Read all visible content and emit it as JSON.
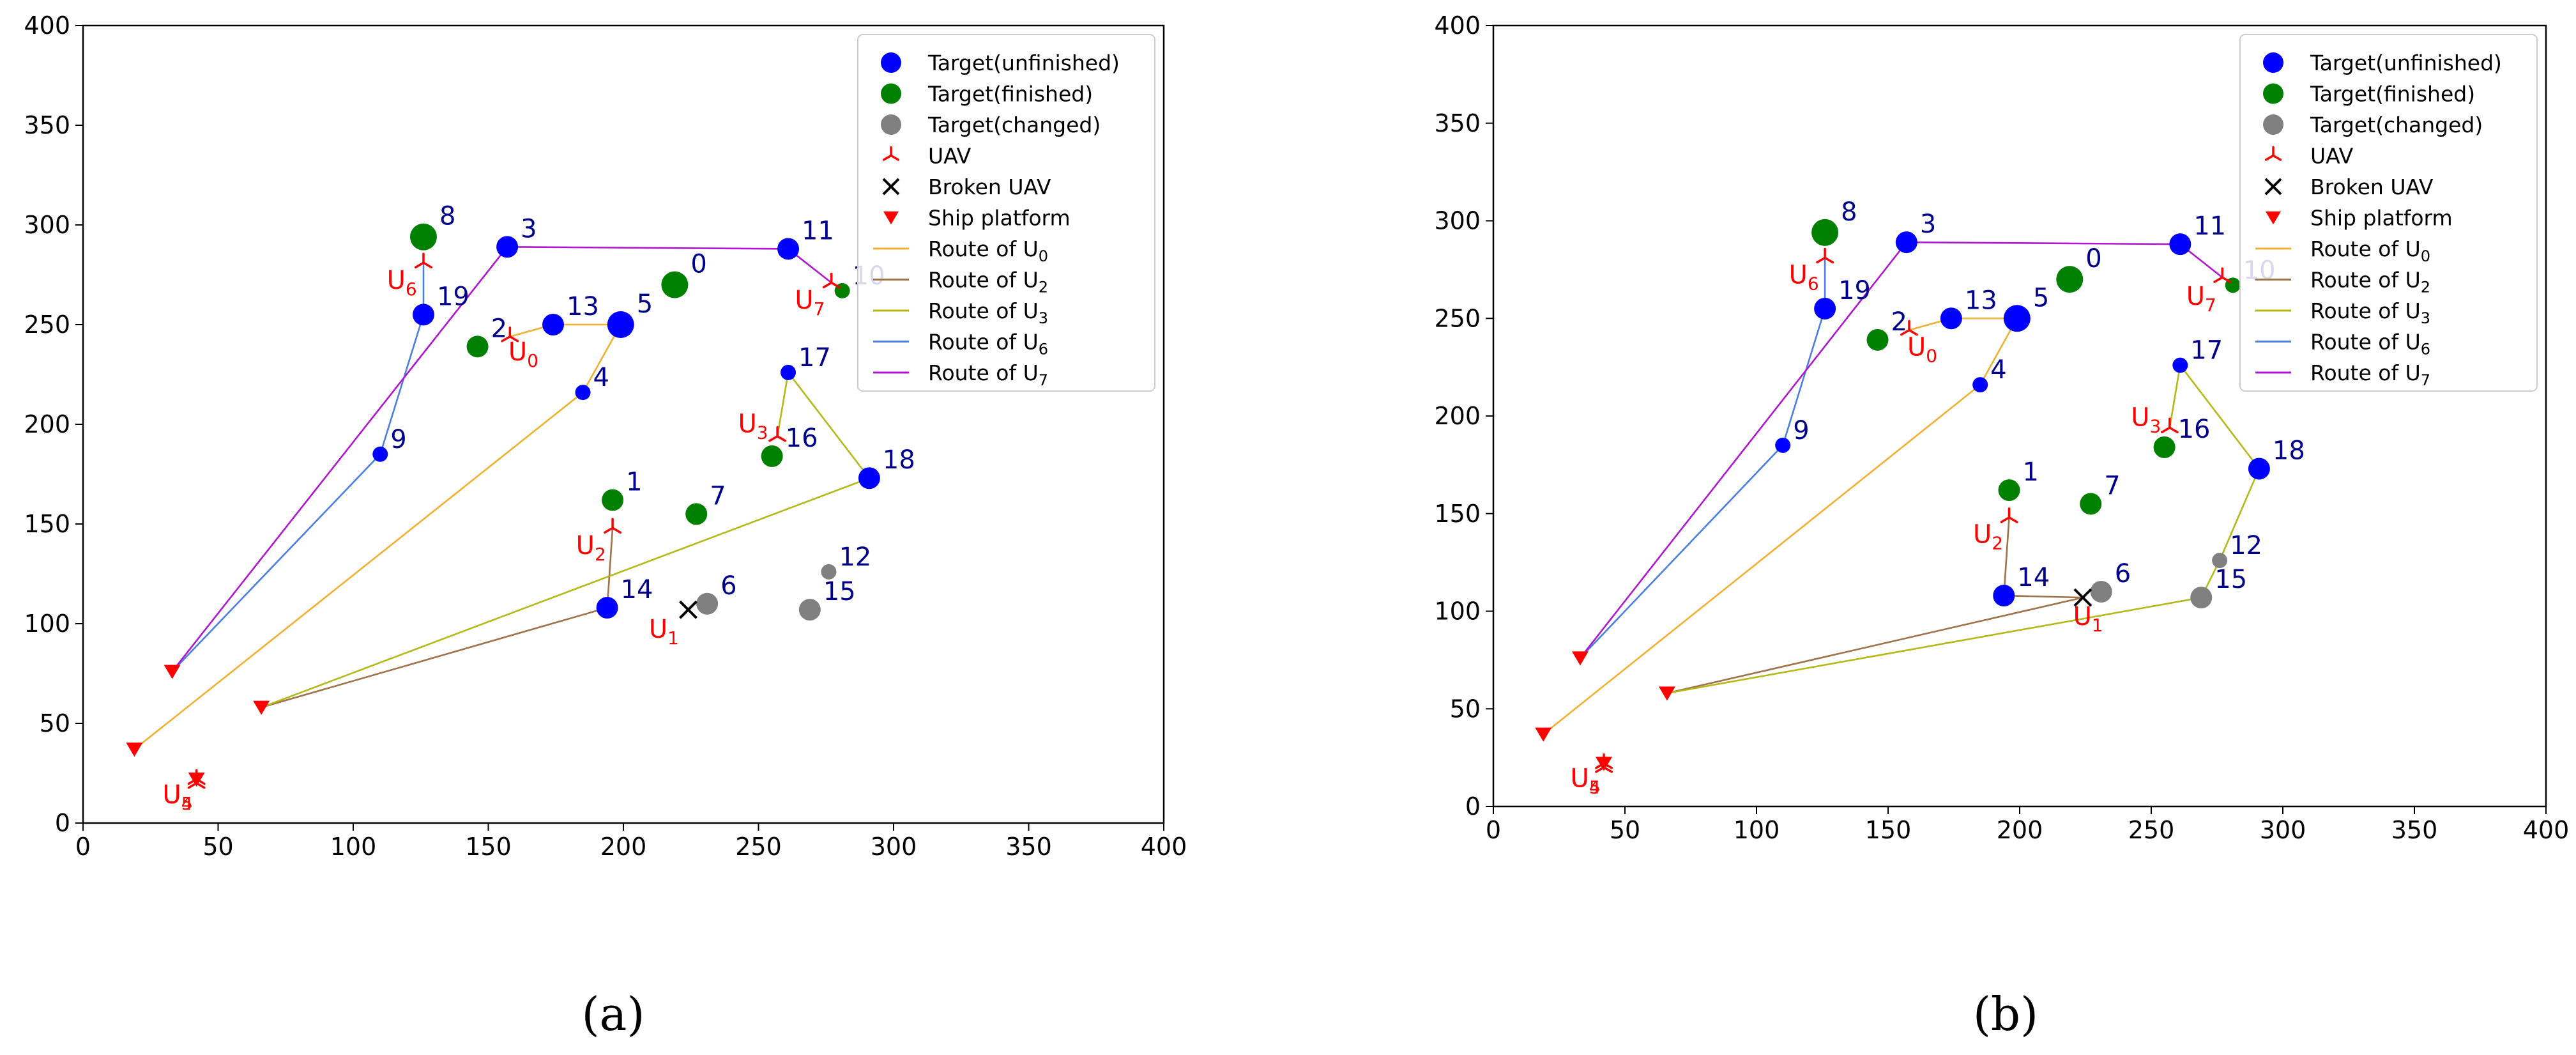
{
  "chart_data": [
    {
      "type": "scatter",
      "caption": "(a)",
      "xlim": [
        0,
        400
      ],
      "ylim": [
        0,
        400
      ],
      "xticks": [
        0,
        50,
        100,
        150,
        200,
        250,
        300,
        350,
        400
      ],
      "yticks": [
        0,
        50,
        100,
        150,
        200,
        250,
        300,
        350,
        400
      ],
      "legend_position": "top-right",
      "legend": [
        {
          "label": "Target(unfinished)",
          "marker": "circle",
          "color": "#0000ff"
        },
        {
          "label": "Target(finished)",
          "marker": "circle",
          "color": "#008000"
        },
        {
          "label": "Target(changed)",
          "marker": "circle",
          "color": "#808080"
        },
        {
          "label": "UAV",
          "marker": "tri_up",
          "color": "#ff0000"
        },
        {
          "label": "Broken UAV",
          "marker": "x",
          "color": "#000000"
        },
        {
          "label": "Ship platform",
          "marker": "triangle_down",
          "color": "#ff0000"
        },
        {
          "label": "Route of U",
          "sub": "0",
          "marker": "line",
          "color": "#f0b030"
        },
        {
          "label": "Route of U",
          "sub": "2",
          "marker": "line",
          "color": "#a0724a"
        },
        {
          "label": "Route of U",
          "sub": "3",
          "marker": "line",
          "color": "#b5b817"
        },
        {
          "label": "Route of U",
          "sub": "6",
          "marker": "line",
          "color": "#4a7ee0"
        },
        {
          "label": "Route of U",
          "sub": "7",
          "marker": "line",
          "color": "#b015d0"
        }
      ],
      "targets": [
        {
          "id": "0",
          "x": 219,
          "y": 270,
          "status": "finished",
          "size": "large"
        },
        {
          "id": "1",
          "x": 196,
          "y": 162,
          "status": "finished",
          "size": "medium"
        },
        {
          "id": "2",
          "x": 146,
          "y": 239,
          "status": "finished",
          "size": "medium"
        },
        {
          "id": "3",
          "x": 157,
          "y": 289,
          "status": "unfinished",
          "size": "medium"
        },
        {
          "id": "4",
          "x": 185,
          "y": 216,
          "status": "unfinished",
          "size": "small"
        },
        {
          "id": "5",
          "x": 199,
          "y": 250,
          "status": "unfinished",
          "size": "large"
        },
        {
          "id": "6",
          "x": 231,
          "y": 110,
          "status": "changed",
          "size": "medium"
        },
        {
          "id": "7",
          "x": 227,
          "y": 155,
          "status": "finished",
          "size": "medium"
        },
        {
          "id": "8",
          "x": 126,
          "y": 294,
          "status": "finished",
          "size": "large"
        },
        {
          "id": "9",
          "x": 110,
          "y": 185,
          "status": "unfinished",
          "size": "small"
        },
        {
          "id": "10",
          "x": 281,
          "y": 267,
          "status": "finished",
          "size": "small"
        },
        {
          "id": "11",
          "x": 261,
          "y": 288,
          "status": "unfinished",
          "size": "medium"
        },
        {
          "id": "12",
          "x": 276,
          "y": 126,
          "status": "changed",
          "size": "small"
        },
        {
          "id": "13",
          "x": 174,
          "y": 250,
          "status": "unfinished",
          "size": "medium"
        },
        {
          "id": "14",
          "x": 194,
          "y": 108,
          "status": "unfinished",
          "size": "medium"
        },
        {
          "id": "15",
          "x": 269,
          "y": 107,
          "status": "changed",
          "size": "medium"
        },
        {
          "id": "16",
          "x": 255,
          "y": 184,
          "status": "finished",
          "size": "medium"
        },
        {
          "id": "17",
          "x": 261,
          "y": 226,
          "status": "unfinished",
          "size": "small"
        },
        {
          "id": "18",
          "x": 291,
          "y": 173,
          "status": "unfinished",
          "size": "medium"
        },
        {
          "id": "19",
          "x": 126,
          "y": 255,
          "status": "unfinished",
          "size": "medium"
        }
      ],
      "ships": [
        {
          "x": 19,
          "y": 37
        },
        {
          "x": 33,
          "y": 76
        },
        {
          "x": 66,
          "y": 58
        },
        {
          "x": 42,
          "y": 22
        }
      ],
      "uavs": [
        {
          "sub": "0",
          "x": 158,
          "y": 244,
          "label_x": 163,
          "label_y": 232
        },
        {
          "sub": "2",
          "x": 196,
          "y": 148,
          "label_x": 188,
          "label_y": 135
        },
        {
          "sub": "3",
          "x": 257,
          "y": 194,
          "label_x": 248,
          "label_y": 196
        },
        {
          "sub": "6",
          "x": 126,
          "y": 281,
          "label_x": 118,
          "label_y": 268
        },
        {
          "sub": "7",
          "x": 277,
          "y": 271,
          "label_x": 269,
          "label_y": 258
        },
        {
          "sub": "5",
          "x": 42,
          "y": 22,
          "label_x": 35,
          "label_y": 10
        },
        {
          "sub": "4",
          "x": 42,
          "y": 20,
          "label_x": 35,
          "label_y": 10
        }
      ],
      "broken_uavs": [
        {
          "sub": "1",
          "x": 224,
          "y": 107,
          "label_x": 215,
          "label_y": 93
        }
      ],
      "routes": [
        {
          "uav": "0",
          "color": "#f0b030",
          "points": [
            [
              19,
              37
            ],
            [
              185,
              216
            ],
            [
              199,
              250
            ],
            [
              174,
              250
            ],
            [
              158,
              244
            ]
          ]
        },
        {
          "uav": "2",
          "color": "#a0724a",
          "points": [
            [
              66,
              58
            ],
            [
              194,
              108
            ],
            [
              196,
              148
            ]
          ]
        },
        {
          "uav": "3",
          "color": "#b5b817",
          "points": [
            [
              66,
              58
            ],
            [
              291,
              173
            ],
            [
              261,
              226
            ],
            [
              257,
              194
            ]
          ]
        },
        {
          "uav": "6",
          "color": "#4a7ee0",
          "points": [
            [
              33,
              76
            ],
            [
              110,
              185
            ],
            [
              126,
              255
            ],
            [
              126,
              281
            ]
          ]
        },
        {
          "uav": "7",
          "color": "#b015d0",
          "points": [
            [
              33,
              76
            ],
            [
              157,
              289
            ],
            [
              261,
              288
            ],
            [
              277,
              271
            ]
          ]
        }
      ]
    },
    {
      "type": "scatter",
      "caption": "(b)",
      "xlim": [
        0,
        400
      ],
      "ylim": [
        0,
        400
      ],
      "xticks": [
        0,
        50,
        100,
        150,
        200,
        250,
        300,
        350,
        400
      ],
      "yticks": [
        0,
        50,
        100,
        150,
        200,
        250,
        300,
        350,
        400
      ],
      "legend_position": "top-right",
      "legend": [
        {
          "label": "Target(unfinished)",
          "marker": "circle",
          "color": "#0000ff"
        },
        {
          "label": "Target(finished)",
          "marker": "circle",
          "color": "#008000"
        },
        {
          "label": "Target(changed)",
          "marker": "circle",
          "color": "#808080"
        },
        {
          "label": "UAV",
          "marker": "tri_up",
          "color": "#ff0000"
        },
        {
          "label": "Broken UAV",
          "marker": "x",
          "color": "#000000"
        },
        {
          "label": "Ship platform",
          "marker": "triangle_down",
          "color": "#ff0000"
        },
        {
          "label": "Route of U",
          "sub": "0",
          "marker": "line",
          "color": "#f0b030"
        },
        {
          "label": "Route of U",
          "sub": "2",
          "marker": "line",
          "color": "#a0724a"
        },
        {
          "label": "Route of U",
          "sub": "3",
          "marker": "line",
          "color": "#b5b817"
        },
        {
          "label": "Route of U",
          "sub": "6",
          "marker": "line",
          "color": "#4a7ee0"
        },
        {
          "label": "Route of U",
          "sub": "7",
          "marker": "line",
          "color": "#b015d0"
        }
      ],
      "targets": [
        {
          "id": "0",
          "x": 219,
          "y": 270,
          "status": "finished",
          "size": "large"
        },
        {
          "id": "1",
          "x": 196,
          "y": 162,
          "status": "finished",
          "size": "medium"
        },
        {
          "id": "2",
          "x": 146,
          "y": 239,
          "status": "finished",
          "size": "medium"
        },
        {
          "id": "3",
          "x": 157,
          "y": 289,
          "status": "unfinished",
          "size": "medium"
        },
        {
          "id": "4",
          "x": 185,
          "y": 216,
          "status": "unfinished",
          "size": "small"
        },
        {
          "id": "5",
          "x": 199,
          "y": 250,
          "status": "unfinished",
          "size": "large"
        },
        {
          "id": "6",
          "x": 231,
          "y": 110,
          "status": "changed",
          "size": "medium"
        },
        {
          "id": "7",
          "x": 227,
          "y": 155,
          "status": "finished",
          "size": "medium"
        },
        {
          "id": "8",
          "x": 126,
          "y": 294,
          "status": "finished",
          "size": "large"
        },
        {
          "id": "9",
          "x": 110,
          "y": 185,
          "status": "unfinished",
          "size": "small"
        },
        {
          "id": "10",
          "x": 281,
          "y": 267,
          "status": "finished",
          "size": "small"
        },
        {
          "id": "11",
          "x": 261,
          "y": 288,
          "status": "unfinished",
          "size": "medium"
        },
        {
          "id": "12",
          "x": 276,
          "y": 126,
          "status": "changed",
          "size": "small"
        },
        {
          "id": "13",
          "x": 174,
          "y": 250,
          "status": "unfinished",
          "size": "medium"
        },
        {
          "id": "14",
          "x": 194,
          "y": 108,
          "status": "unfinished",
          "size": "medium"
        },
        {
          "id": "15",
          "x": 269,
          "y": 107,
          "status": "changed",
          "size": "medium"
        },
        {
          "id": "16",
          "x": 255,
          "y": 184,
          "status": "finished",
          "size": "medium"
        },
        {
          "id": "17",
          "x": 261,
          "y": 226,
          "status": "unfinished",
          "size": "small"
        },
        {
          "id": "18",
          "x": 291,
          "y": 173,
          "status": "unfinished",
          "size": "medium"
        },
        {
          "id": "19",
          "x": 126,
          "y": 255,
          "status": "unfinished",
          "size": "medium"
        }
      ],
      "ships": [
        {
          "x": 19,
          "y": 37
        },
        {
          "x": 33,
          "y": 76
        },
        {
          "x": 66,
          "y": 58
        },
        {
          "x": 42,
          "y": 22
        }
      ],
      "uavs": [
        {
          "sub": "0",
          "x": 158,
          "y": 244,
          "label_x": 163,
          "label_y": 231
        },
        {
          "sub": "2",
          "x": 196,
          "y": 148,
          "label_x": 188,
          "label_y": 135
        },
        {
          "sub": "3",
          "x": 257,
          "y": 194,
          "label_x": 248,
          "label_y": 195
        },
        {
          "sub": "6",
          "x": 126,
          "y": 281,
          "label_x": 118,
          "label_y": 268
        },
        {
          "sub": "7",
          "x": 277,
          "y": 271,
          "label_x": 269,
          "label_y": 257
        },
        {
          "sub": "5",
          "x": 42,
          "y": 22,
          "label_x": 35,
          "label_y": 10
        },
        {
          "sub": "4",
          "x": 42,
          "y": 20,
          "label_x": 35,
          "label_y": 10
        }
      ],
      "broken_uavs": [
        {
          "sub": "1",
          "x": 224,
          "y": 107,
          "label_x": 226,
          "label_y": 93
        }
      ],
      "routes": [
        {
          "uav": "0",
          "color": "#f0b030",
          "points": [
            [
              19,
              37
            ],
            [
              185,
              216
            ],
            [
              199,
              250
            ],
            [
              174,
              250
            ],
            [
              158,
              244
            ]
          ]
        },
        {
          "uav": "2",
          "color": "#a0724a",
          "points": [
            [
              66,
              58
            ],
            [
              224,
              107
            ],
            [
              194,
              108
            ],
            [
              196,
              148
            ]
          ]
        },
        {
          "uav": "3",
          "color": "#b5b817",
          "points": [
            [
              66,
              58
            ],
            [
              269,
              107
            ],
            [
              276,
              126
            ],
            [
              291,
              173
            ],
            [
              261,
              226
            ],
            [
              257,
              194
            ]
          ]
        },
        {
          "uav": "6",
          "color": "#4a7ee0",
          "points": [
            [
              33,
              76
            ],
            [
              110,
              185
            ],
            [
              126,
              255
            ],
            [
              126,
              281
            ]
          ]
        },
        {
          "uav": "7",
          "color": "#b015d0",
          "points": [
            [
              33,
              76
            ],
            [
              157,
              289
            ],
            [
              261,
              288
            ],
            [
              277,
              271
            ]
          ]
        }
      ]
    }
  ]
}
